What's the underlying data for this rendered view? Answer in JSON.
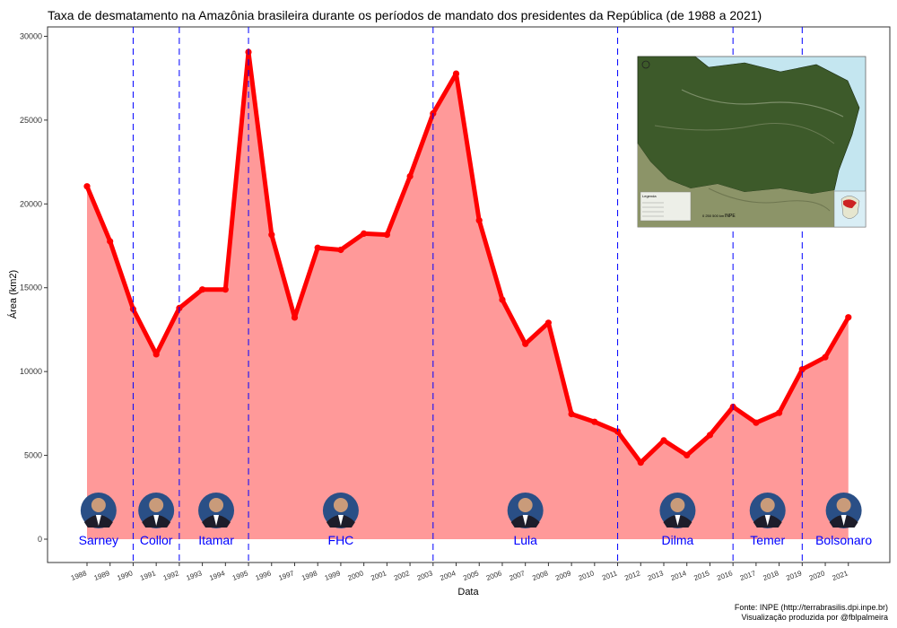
{
  "chart_data": {
    "type": "area",
    "title": "Taxa de desmatamento na Amazônia brasileira durante os períodos de mandato dos presidentes da República (de 1988 a 2021)",
    "xlabel": "Data",
    "ylabel": "Área (km2)",
    "x": [
      "1988",
      "1989",
      "1990",
      "1991",
      "1992",
      "1993",
      "1994",
      "1995",
      "1996",
      "1997",
      "1998",
      "1999",
      "2000",
      "2001",
      "2002",
      "2003",
      "2004",
      "2005",
      "2006",
      "2007",
      "2008",
      "2009",
      "2010",
      "2011",
      "2012",
      "2013",
      "2014",
      "2015",
      "2016",
      "2017",
      "2018",
      "2019",
      "2020",
      "2021"
    ],
    "values": [
      21050,
      17770,
      13730,
      11030,
      13786,
      14896,
      14896,
      29059,
      18161,
      13227,
      17383,
      17259,
      18226,
      18165,
      21651,
      25396,
      27772,
      19014,
      14286,
      11651,
      12911,
      7464,
      7000,
      6418,
      4571,
      5891,
      5012,
      6207,
      7893,
      6947,
      7536,
      10129,
      10851,
      13235
    ],
    "ylim": [
      -1500,
      30500
    ],
    "yticks": [
      0,
      5000,
      10000,
      15000,
      20000,
      25000,
      30000
    ],
    "grid": false,
    "line_color": "#ff0000",
    "fill_color": "#ff9999",
    "divider_color": "#0000ff",
    "term_boundaries": [
      1990,
      1992,
      1995,
      2003,
      2011,
      2016,
      2019
    ],
    "presidents": [
      {
        "name": "Sarney",
        "x": 1988.5
      },
      {
        "name": "Collor",
        "x": 1991
      },
      {
        "name": "Itamar",
        "x": 1993.6
      },
      {
        "name": "FHC",
        "x": 1999
      },
      {
        "name": "Lula",
        "x": 2007
      },
      {
        "name": "Dilma",
        "x": 2013.6
      },
      {
        "name": "Temer",
        "x": 2017.5
      },
      {
        "name": "Bolsonaro",
        "x": 2020.8
      }
    ]
  },
  "caption": {
    "source": "Fonte: INPE (http://terrabrasilis.dpi.inpe.br)",
    "credit": "Visualização produzida por @fblpalmeira"
  },
  "inset_map": {
    "icon": "amazon-satellite-map-icon",
    "legend_title": "Legenda",
    "scale_label": "0 250 500 km",
    "logo": "INPE"
  }
}
